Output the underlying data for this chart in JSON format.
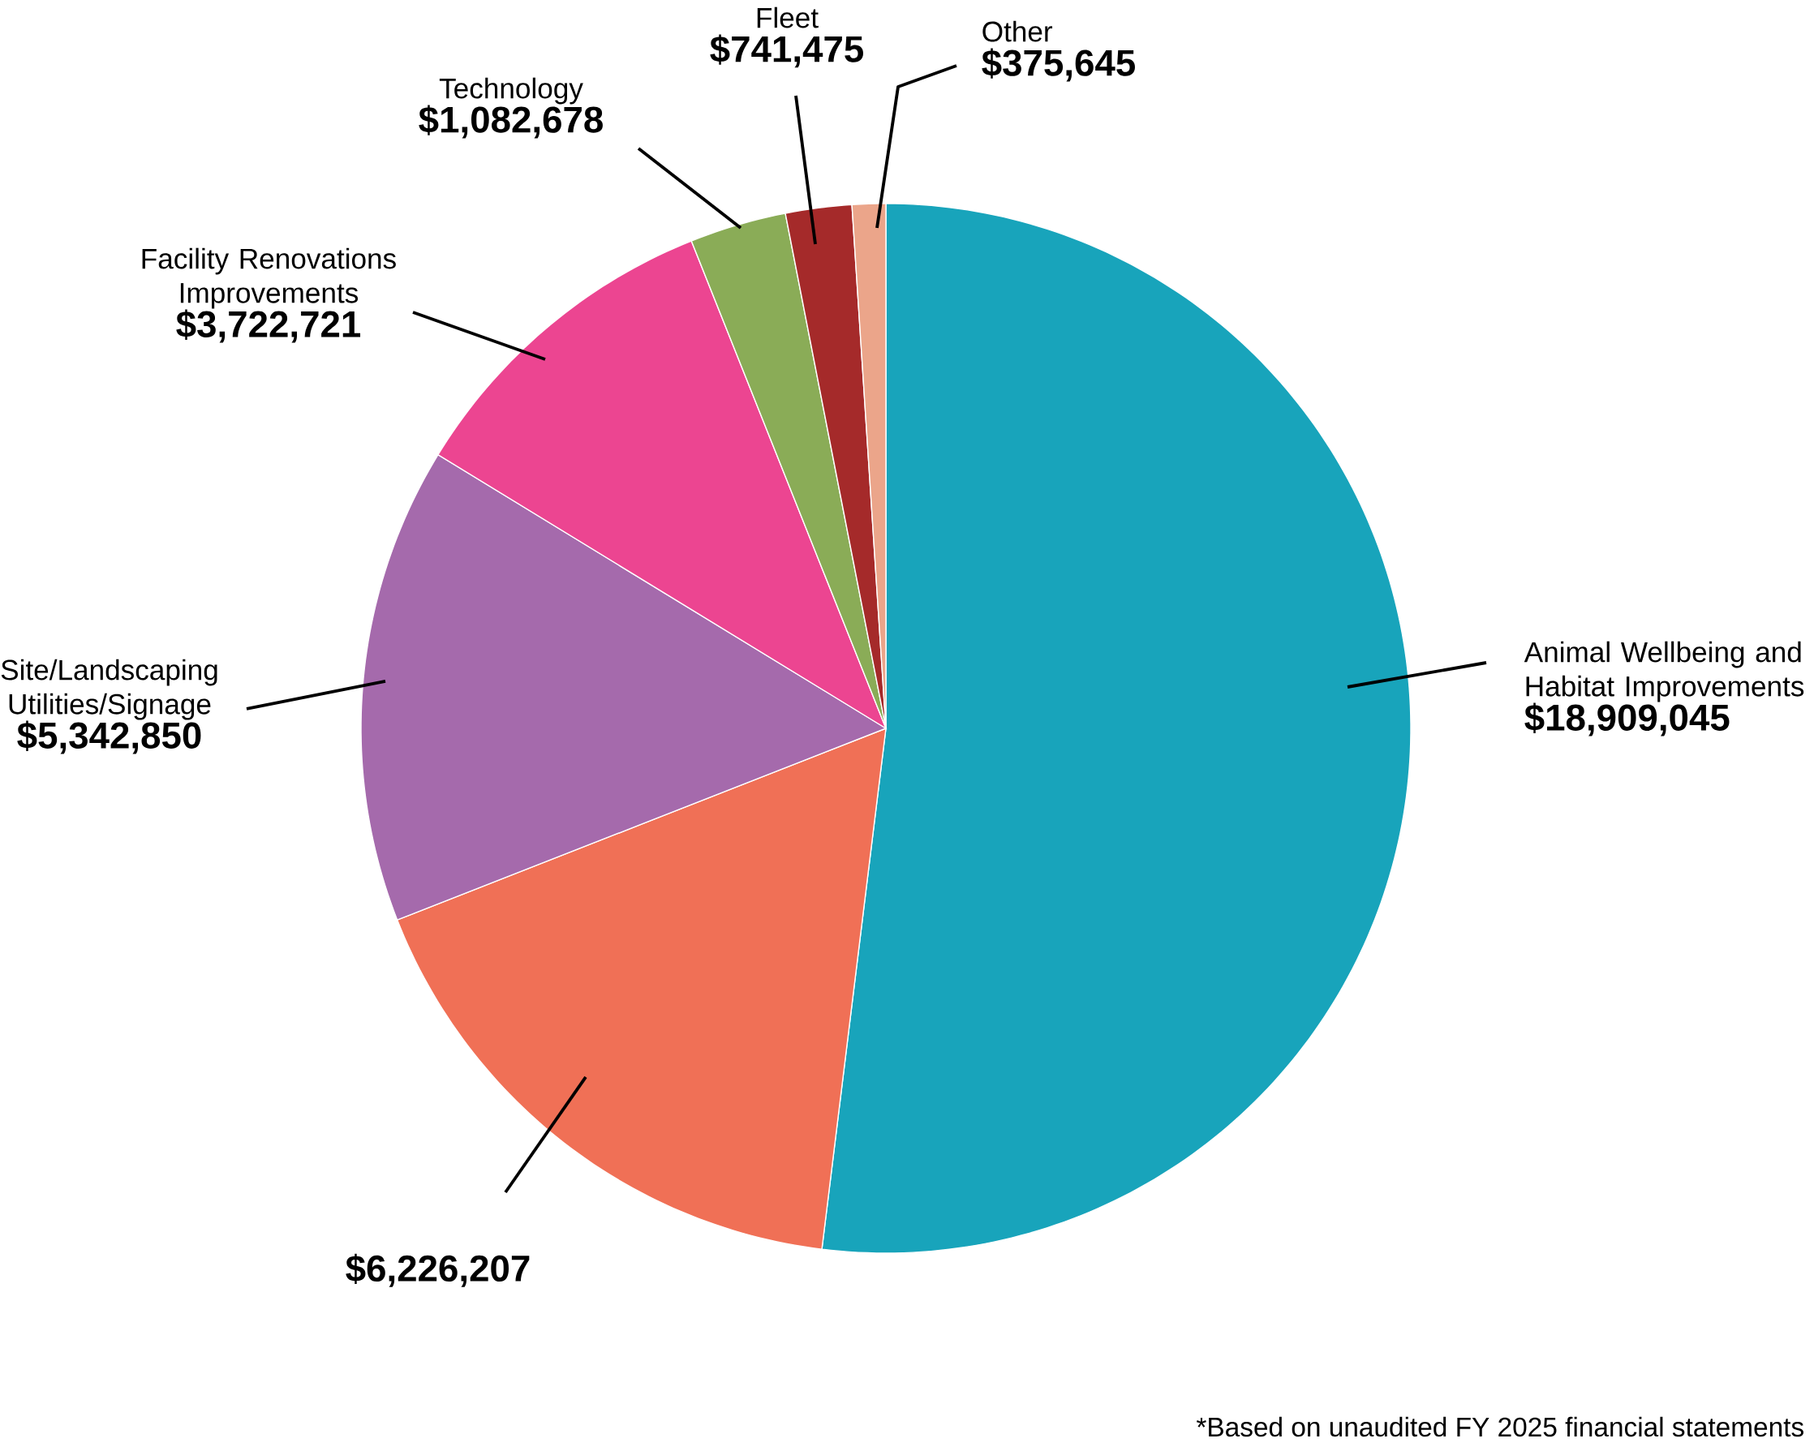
{
  "chart_data": {
    "type": "pie",
    "categories": [
      "Animal Wellbeing and Habitat Improvements",
      null,
      "Site/Landscaping Utilities/Signage",
      "Facility Renovations Improvements",
      "Technology",
      "Fleet",
      "Other"
    ],
    "values": [
      18909045,
      6226207,
      5342850,
      3722721,
      1082678,
      741475,
      375645
    ],
    "colors": [
      "#18a4bb",
      "#f07056",
      "#a56aac",
      "#ec4591",
      "#8aac57",
      "#a52a2a",
      "#eba58a"
    ],
    "value_labels": [
      "$18,909,045",
      "$6,226,207",
      "$5,342,850",
      "$3,722,721",
      "$1,082,678",
      "$741,475",
      "$375,645"
    ],
    "annotations": [
      "*Based on unaudited FY 2025 financial statements"
    ]
  }
}
